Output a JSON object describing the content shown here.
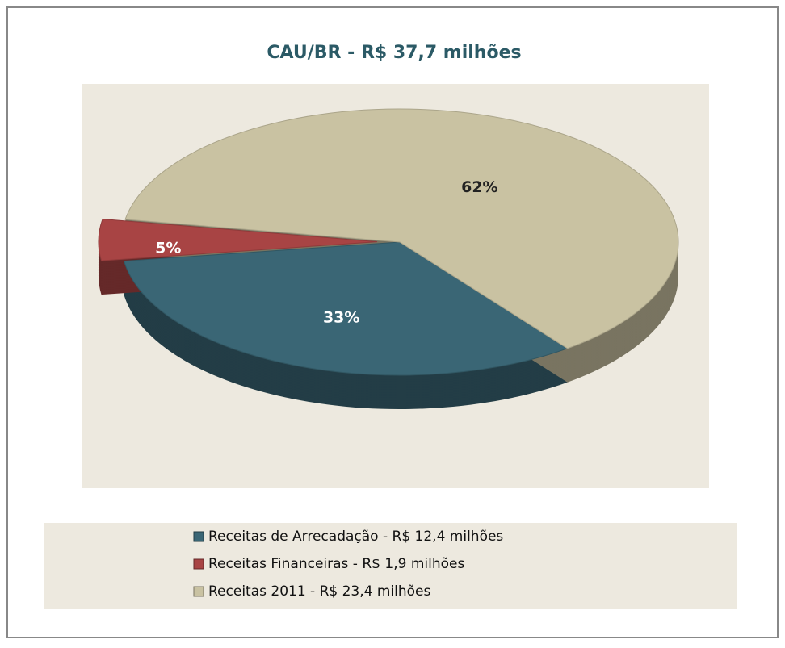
{
  "chart_data": {
    "type": "pie",
    "title": "CAU/BR  - R$ 37,7 milhões",
    "categories": [
      "Receitas de Arrecadação - R$ 12,4 milhões",
      "Receitas Financeiras - R$ 1,9 milhões",
      "Receitas 2011 - R$ 23,4 milhões"
    ],
    "values": [
      33,
      5,
      62
    ],
    "value_labels": [
      "33%",
      "5%",
      "62%"
    ],
    "colors": [
      "#3a6675",
      "#a84444",
      "#c9c2a2"
    ]
  }
}
